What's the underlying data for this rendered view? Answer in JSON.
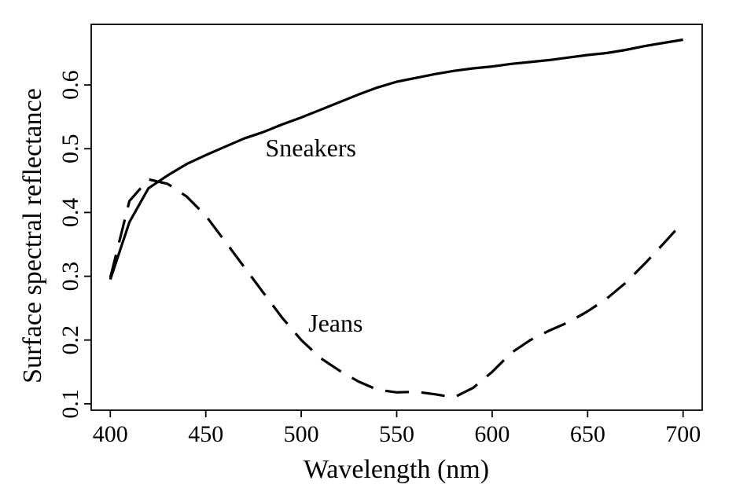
{
  "chart_data": {
    "type": "line",
    "xlabel": "Wavelength (nm)",
    "ylabel": "Surface spectral reflectance",
    "xlim": [
      390,
      710
    ],
    "ylim": [
      0.09,
      0.695
    ],
    "xticks": [
      400,
      450,
      500,
      550,
      600,
      650,
      700
    ],
    "yticks": [
      0.1,
      0.2,
      0.3,
      0.4,
      0.5,
      0.6
    ],
    "x_tick_labels": [
      "400",
      "450",
      "500",
      "550",
      "600",
      "650",
      "700"
    ],
    "y_tick_labels": [
      "0.1",
      "0.2",
      "0.3",
      "0.4",
      "0.5",
      "0.6"
    ],
    "grid": false,
    "series": [
      {
        "name": "Sneakers",
        "line_style": "solid",
        "color": "#000000",
        "x": [
          400,
          410,
          420,
          430,
          440,
          450,
          460,
          470,
          480,
          490,
          500,
          510,
          520,
          530,
          540,
          550,
          560,
          570,
          580,
          590,
          600,
          610,
          620,
          630,
          640,
          650,
          660,
          670,
          680,
          690,
          700
        ],
        "y": [
          0.295,
          0.385,
          0.438,
          0.458,
          0.476,
          0.49,
          0.503,
          0.516,
          0.526,
          0.538,
          0.549,
          0.561,
          0.573,
          0.585,
          0.596,
          0.605,
          0.611,
          0.617,
          0.622,
          0.626,
          0.629,
          0.633,
          0.636,
          0.639,
          0.643,
          0.647,
          0.65,
          0.655,
          0.661,
          0.666,
          0.671
        ]
      },
      {
        "name": "Jeans",
        "line_style": "dashed",
        "color": "#000000",
        "x": [
          400,
          410,
          420,
          430,
          440,
          450,
          460,
          470,
          480,
          490,
          500,
          510,
          520,
          530,
          540,
          550,
          560,
          570,
          580,
          590,
          600,
          610,
          620,
          630,
          640,
          650,
          660,
          670,
          680,
          690,
          700
        ],
        "y": [
          0.298,
          0.418,
          0.452,
          0.445,
          0.425,
          0.395,
          0.355,
          0.315,
          0.275,
          0.235,
          0.2,
          0.172,
          0.152,
          0.135,
          0.122,
          0.118,
          0.119,
          0.115,
          0.11,
          0.125,
          0.15,
          0.18,
          0.2,
          0.215,
          0.228,
          0.245,
          0.265,
          0.29,
          0.32,
          0.352,
          0.385
        ]
      }
    ],
    "annotations": [
      {
        "text": "Sneakers",
        "x": 505,
        "y": 0.488
      },
      {
        "text": "Jeans",
        "x": 518,
        "y": 0.213
      }
    ]
  }
}
